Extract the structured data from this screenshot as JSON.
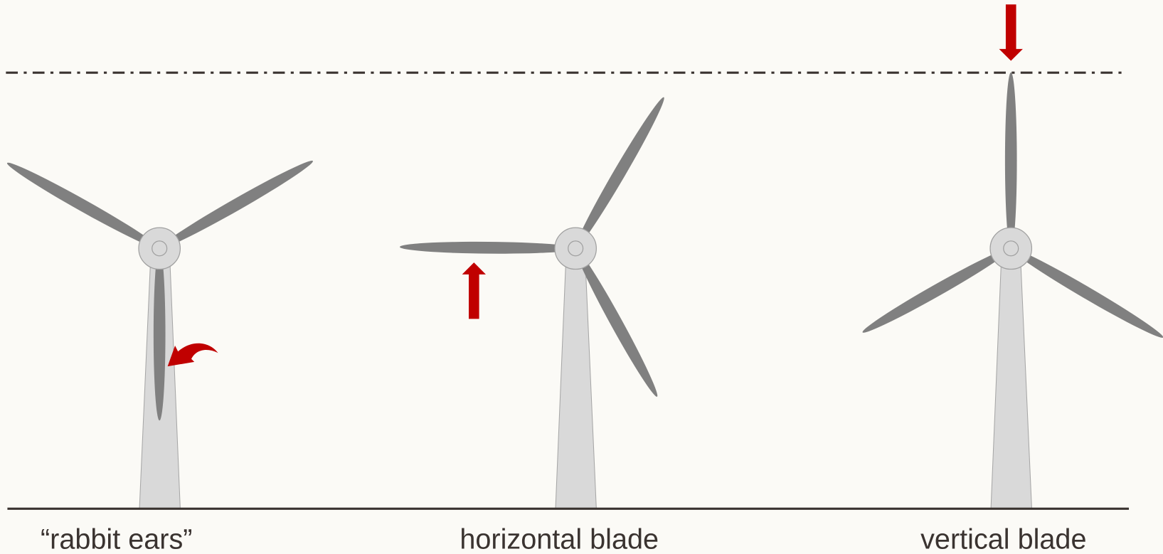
{
  "turbines": [
    {
      "label": "“rabbit ears”"
    },
    {
      "label": "horizontal blade"
    },
    {
      "label": "vertical blade"
    }
  ]
}
